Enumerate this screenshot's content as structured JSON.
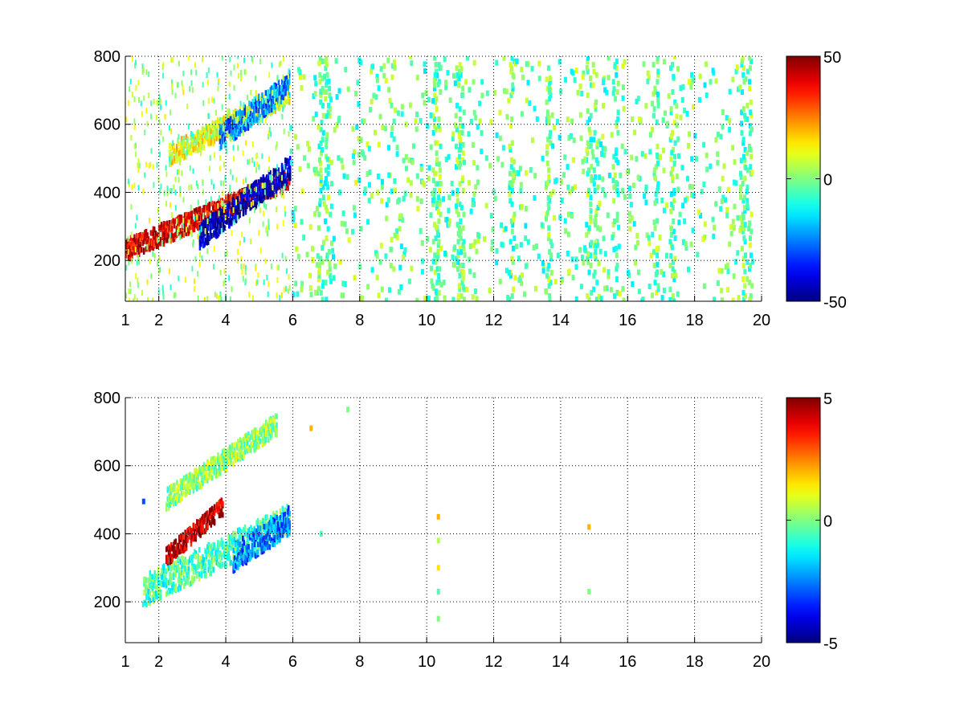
{
  "chart_data": [
    {
      "type": "heatmap",
      "title": "",
      "xlabel": "",
      "ylabel": "",
      "xlim": [
        1,
        20
      ],
      "ylim": [
        80,
        800
      ],
      "x_ticks": [
        1,
        2,
        4,
        6,
        8,
        10,
        12,
        14,
        16,
        18,
        20
      ],
      "x_tick_labels": [
        "1",
        "2",
        "4",
        "6",
        "8",
        "10",
        "12",
        "14",
        "16",
        "18",
        "20"
      ],
      "y_ticks": [
        200,
        400,
        600,
        800
      ],
      "y_tick_labels": [
        "200",
        "400",
        "600",
        "800"
      ],
      "grid": true,
      "colormap": "jet",
      "clim": [
        -50,
        50
      ],
      "colorbar_ticks": [
        -50,
        0,
        50
      ],
      "colorbar_tick_labels": [
        "-50",
        "0",
        "50"
      ],
      "features": [
        {
          "kind": "band",
          "x_range": [
            1.0,
            5.9
          ],
          "y_center": [
            230,
            440
          ],
          "width": 60,
          "value": 40,
          "description_value": "strong positive"
        },
        {
          "kind": "band",
          "x_range": [
            3.2,
            5.9
          ],
          "y_center": [
            270,
            470
          ],
          "width": 70,
          "value": -45
        },
        {
          "kind": "band",
          "x_range": [
            2.3,
            5.9
          ],
          "y_center": [
            510,
            690
          ],
          "width": 60,
          "value": 10
        },
        {
          "kind": "band",
          "x_range": [
            3.8,
            5.9
          ],
          "y_center": [
            560,
            720
          ],
          "width": 70,
          "value": -25
        }
      ],
      "sparse_columns_x": [
        6.8,
        7.0,
        10.2,
        10.3,
        10.9,
        11.0,
        12.5,
        13.6,
        14.8,
        15.0,
        15.6,
        16.8,
        17.3,
        19.4,
        19.6
      ],
      "sparse_value_range": [
        -15,
        10
      ]
    },
    {
      "type": "heatmap",
      "title": "",
      "xlabel": "",
      "ylabel": "",
      "xlim": [
        1,
        20
      ],
      "ylim": [
        80,
        800
      ],
      "x_ticks": [
        1,
        2,
        4,
        6,
        8,
        10,
        12,
        14,
        16,
        18,
        20
      ],
      "x_tick_labels": [
        "1",
        "2",
        "4",
        "6",
        "8",
        "10",
        "12",
        "14",
        "16",
        "18",
        "20"
      ],
      "y_ticks": [
        200,
        400,
        600,
        800
      ],
      "y_tick_labels": [
        "200",
        "400",
        "600",
        "800"
      ],
      "grid": true,
      "colormap": "jet",
      "clim": [
        -5,
        5
      ],
      "colorbar_ticks": [
        -5,
        0,
        5
      ],
      "colorbar_tick_labels": [
        "-5",
        "0",
        "5"
      ],
      "features": [
        {
          "kind": "band",
          "x_range": [
            1.5,
            5.9
          ],
          "y_center": [
            230,
            440
          ],
          "width": 90,
          "value": -0.5
        },
        {
          "kind": "band",
          "x_range": [
            2.2,
            3.9
          ],
          "y_center": [
            330,
            480
          ],
          "width": 50,
          "value": 4.5
        },
        {
          "kind": "band",
          "x_range": [
            4.2,
            5.9
          ],
          "y_center": [
            330,
            440
          ],
          "width": 80,
          "value": -2.5
        },
        {
          "kind": "band",
          "x_range": [
            2.2,
            5.5
          ],
          "y_center": [
            500,
            720
          ],
          "width": 60,
          "value": 0.2
        }
      ],
      "isolated_points": [
        {
          "x": 10.3,
          "y": 450,
          "value": 2
        },
        {
          "x": 10.3,
          "y": 380,
          "value": 0.5
        },
        {
          "x": 10.3,
          "y": 300,
          "value": 1.5
        },
        {
          "x": 10.3,
          "y": 230,
          "value": -0.5
        },
        {
          "x": 10.3,
          "y": 150,
          "value": 0
        },
        {
          "x": 14.8,
          "y": 420,
          "value": 2
        },
        {
          "x": 14.8,
          "y": 230,
          "value": 0
        },
        {
          "x": 6.8,
          "y": 400,
          "value": -0.5
        },
        {
          "x": 6.5,
          "y": 710,
          "value": 2
        },
        {
          "x": 7.6,
          "y": 765,
          "value": 0
        },
        {
          "x": 1.5,
          "y": 495,
          "value": -3
        }
      ]
    }
  ]
}
